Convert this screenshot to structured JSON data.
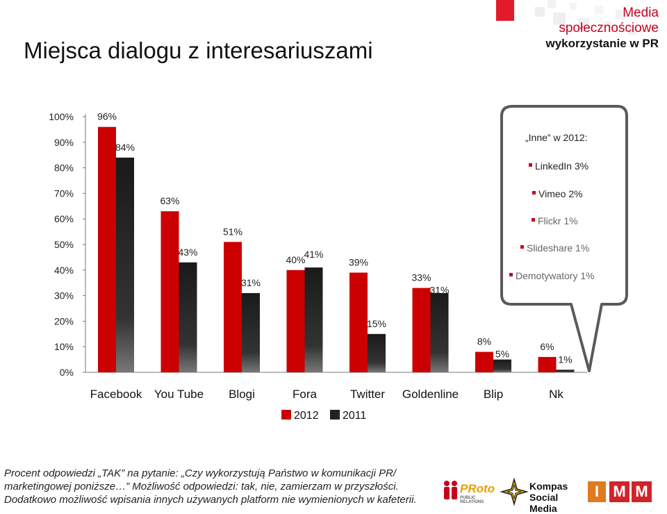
{
  "header": {
    "title": "Miejsca dialogu z interesariuszami",
    "brand_line1": "Media",
    "brand_line2": "społecznościowe",
    "brand_line3": "wykorzystanie w PR"
  },
  "callout": {
    "heading": "„Inne” w 2012:",
    "items": [
      "LinkedIn 3%",
      "Vimeo 2%",
      "Flickr 1%",
      "Slideshare 1%",
      "Demotywatory 1%"
    ]
  },
  "colors": {
    "series_2012": "#cc0000",
    "series_2011": "#222222",
    "axis": "#777777"
  },
  "chart_data": {
    "type": "bar",
    "categories": [
      "Facebook",
      "You Tube",
      "Blogi",
      "Fora",
      "Twitter",
      "Goldenline",
      "Blip",
      "Nk"
    ],
    "series": [
      {
        "name": "2012",
        "values": [
          96,
          63,
          51,
          40,
          39,
          33,
          8,
          6
        ]
      },
      {
        "name": "2011",
        "values": [
          84,
          43,
          31,
          41,
          15,
          31,
          5,
          1
        ]
      }
    ],
    "value_labels": {
      "2012": [
        "96%",
        "63%",
        "51%",
        "40%",
        "39%",
        "33%",
        "8%",
        "6%"
      ],
      "2011": [
        "84%",
        "43%",
        "31%",
        "41%",
        "15%",
        "31%",
        "5%",
        "1%"
      ]
    },
    "y_ticks": [
      "0%",
      "10%",
      "20%",
      "30%",
      "40%",
      "50%",
      "60%",
      "70%",
      "80%",
      "90%",
      "100%"
    ],
    "ylim": [
      0,
      100
    ],
    "legend_position": "bottom-center",
    "grid": false
  },
  "footer": {
    "line1": "Procent odpowiedzi „TAK” na pytanie: „Czy wykorzystują Państwo w komunikacji PR/",
    "line2": "marketingowej poniższe…” Możliwość odpowiedzi: tak, nie, zamierzam w przyszłości.",
    "line3": "Dodatkowo możliwość wpisania innych używanych platform nie wymienionych w kafeterii."
  },
  "logos": {
    "proto_name": "PRoto",
    "proto_sub": "PUBLIC RELATIONS",
    "kompas_line1": "Kompas",
    "kompas_line2": "Social Media",
    "imm_letters": [
      "I",
      "M",
      "M"
    ]
  }
}
